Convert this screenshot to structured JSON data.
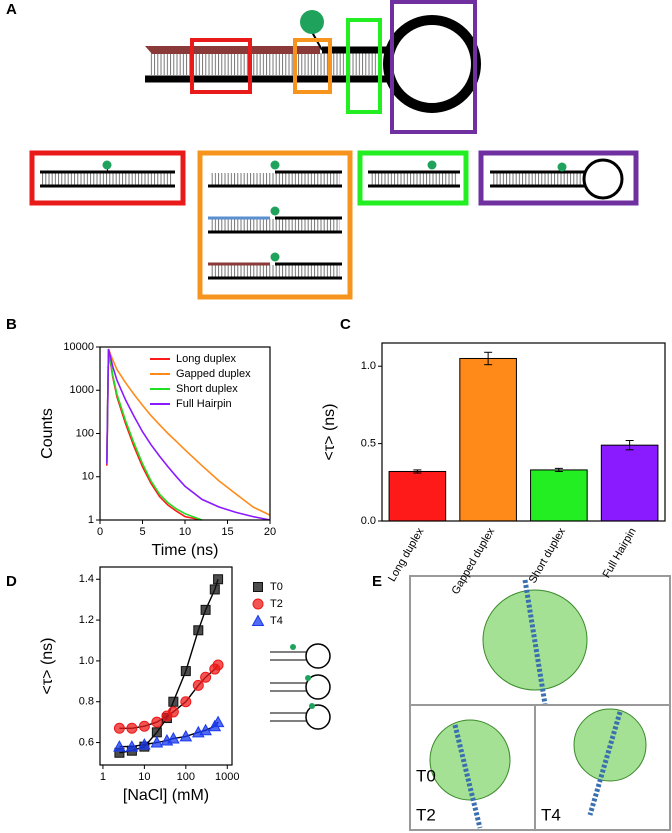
{
  "panel_labels": [
    "A",
    "B",
    "C",
    "D",
    "E"
  ],
  "structures": {
    "labels": [
      "T0",
      "T2",
      "T4"
    ]
  },
  "chart_data": [
    {
      "type": "line",
      "xlabel": "Time (ns)",
      "ylabel": "Counts",
      "y_scale": "log",
      "legend": "upper right",
      "x": [
        0.8,
        1,
        1.5,
        2,
        3,
        4,
        5,
        6,
        7,
        8,
        9,
        10,
        12,
        14,
        16,
        18,
        20
      ],
      "xlim": [
        0,
        20
      ],
      "xticks": [
        0,
        5,
        10,
        15,
        20
      ],
      "ylim": [
        1,
        10000
      ],
      "yticks": [
        1,
        10,
        100,
        1000,
        10000
      ],
      "series": [
        {
          "name": "Long duplex",
          "color": "#ff1a1a",
          "values": [
            18,
            8500,
            2000,
            700,
            170,
            50,
            17,
            7,
            3.5,
            2.2,
            1.6,
            1.2,
            1,
            null,
            null,
            null,
            null
          ]
        },
        {
          "name": "Gapped duplex",
          "color": "#ff8a1a",
          "values": [
            20,
            9000,
            5000,
            3000,
            1500,
            800,
            450,
            260,
            160,
            100,
            65,
            42,
            18,
            8,
            4,
            2,
            1.3
          ]
        },
        {
          "name": "Short duplex",
          "color": "#22dd22",
          "values": [
            20,
            9000,
            2200,
            800,
            200,
            60,
            20,
            8,
            4,
            2.5,
            1.8,
            1.4,
            1,
            null,
            null,
            null,
            null
          ]
        },
        {
          "name": "Full Hairpin",
          "color": "#8a1aff",
          "values": [
            20,
            9000,
            3500,
            1700,
            600,
            250,
            110,
            55,
            30,
            17,
            10,
            6,
            3,
            2,
            1.5,
            1.2,
            1
          ]
        }
      ]
    },
    {
      "type": "bar",
      "ylabel": "<τ> (ns)",
      "categories": [
        "Long duplex",
        "Gapped duplex",
        "Short duplex",
        "Full Hairpin"
      ],
      "values": [
        0.32,
        1.05,
        0.33,
        0.49
      ],
      "errors": [
        0.01,
        0.04,
        0.01,
        0.03
      ],
      "colors": [
        "#ff1a1a",
        "#ff8a1a",
        "#22ee22",
        "#8a1aff"
      ],
      "ylim": [
        0,
        1.15
      ],
      "yticks": [
        {
          "value": 0,
          "label": "0.0"
        },
        0.5,
        {
          "value": 1,
          "label": "1.0"
        }
      ]
    },
    {
      "type": "scatter",
      "xlabel": "[NaCl] (mM)",
      "ylabel": "<τ> (ns)",
      "x_scale": "log",
      "legend": "outside right",
      "x": [
        2.5,
        5,
        10,
        20,
        35,
        50,
        100,
        200,
        300,
        500,
        600
      ],
      "xlim": [
        0.85,
        1300
      ],
      "xticks": [
        1,
        10,
        100,
        1000
      ],
      "ylim": [
        0.49,
        1.46
      ],
      "yticks": [
        0.6,
        0.8,
        {
          "value": 1,
          "label": "1.0"
        },
        1.2,
        1.4
      ],
      "series": [
        {
          "name": "T0",
          "color": "#111111",
          "marker": "square",
          "values": [
            0.55,
            0.56,
            0.58,
            0.65,
            0.72,
            0.8,
            0.95,
            1.15,
            1.25,
            1.35,
            1.4
          ]
        },
        {
          "name": "T2",
          "color": "#ee1a1a",
          "marker": "circle",
          "values": [
            0.67,
            0.67,
            0.68,
            0.7,
            0.73,
            0.75,
            0.8,
            0.88,
            0.92,
            0.96,
            0.98
          ]
        },
        {
          "name": "T4",
          "color": "#1a3aee",
          "marker": "triangle",
          "values": [
            0.58,
            0.58,
            0.59,
            0.6,
            0.61,
            0.62,
            0.63,
            0.65,
            0.66,
            0.68,
            0.7
          ]
        }
      ]
    }
  ]
}
